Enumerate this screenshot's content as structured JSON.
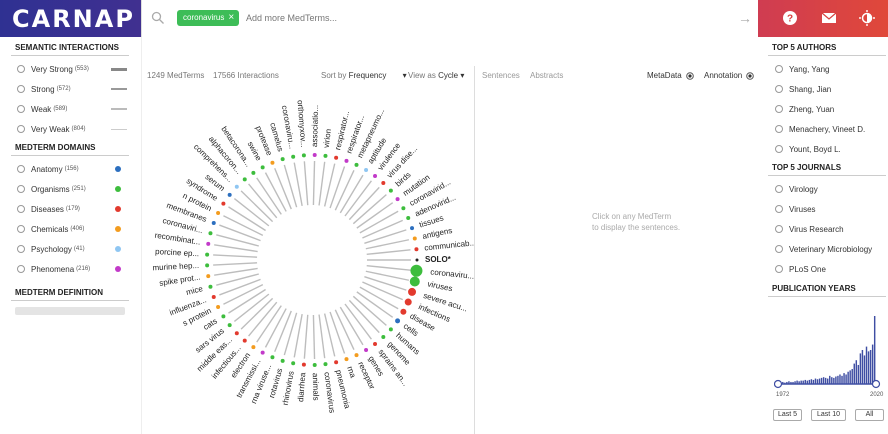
{
  "header": {
    "logo": "CARNAP",
    "chip_label": "coronavirus",
    "search_placeholder": "Add more MedTerms...",
    "gradient": [
      "#2f3192",
      "#e0483a"
    ]
  },
  "semantic": {
    "title": "SEMANTIC INTERACTIONS",
    "items": [
      {
        "label": "Very Strong",
        "count": "(553)"
      },
      {
        "label": "Strong",
        "count": "(572)"
      },
      {
        "label": "Weak",
        "count": "(589)"
      },
      {
        "label": "Very Weak",
        "count": "(804)"
      }
    ]
  },
  "domains": {
    "title": "MEDTERM DOMAINS",
    "items": [
      {
        "label": "Anatomy",
        "count": "(156)",
        "color": "#2c6fbf"
      },
      {
        "label": "Organisms",
        "count": "(251)",
        "color": "#3dbd3d"
      },
      {
        "label": "Diseases",
        "count": "(179)",
        "color": "#e23a2e"
      },
      {
        "label": "Chemicals",
        "count": "(406)",
        "color": "#f39c1f"
      },
      {
        "label": "Psychology",
        "count": "(41)",
        "color": "#8fc6f2"
      },
      {
        "label": "Phenomena",
        "count": "(216)",
        "color": "#c23ac9"
      }
    ]
  },
  "definition": {
    "title": "MEDTERM DEFINITION"
  },
  "graph": {
    "medterms": "1249",
    "medterms_label": "MedTerms",
    "interactions": "17566",
    "interactions_label": "Interactions",
    "sort_by_label": "Sort by",
    "sort_by_value": "Frequency",
    "view_as_label": "View as",
    "view_as_value": "Cycle",
    "center_term": "SOLO*",
    "nodes": [
      {
        "label": "coronaviru...",
        "color": "#3dbd3d",
        "size": 6
      },
      {
        "label": "viruses",
        "color": "#3dbd3d",
        "size": 5
      },
      {
        "label": "severe acu...",
        "color": "#e23a2e",
        "size": 4
      },
      {
        "label": "infections",
        "color": "#e23a2e",
        "size": 3.5
      },
      {
        "label": "disease",
        "color": "#e23a2e",
        "size": 3
      },
      {
        "label": "cells",
        "color": "#2c6fbf",
        "size": 2.5
      },
      {
        "label": "humans",
        "color": "#3dbd3d",
        "size": 2
      },
      {
        "label": "genome",
        "color": "#3dbd3d",
        "size": 2
      },
      {
        "label": "sprains an...",
        "color": "#e23a2e",
        "size": 2
      },
      {
        "label": "genes",
        "color": "#c23ac9",
        "size": 2
      },
      {
        "label": "receptor",
        "color": "#f39c1f",
        "size": 2
      },
      {
        "label": "rna",
        "color": "#f39c1f",
        "size": 2
      },
      {
        "label": "pneumonia",
        "color": "#e23a2e",
        "size": 2
      },
      {
        "label": "coronavirus",
        "color": "#3dbd3d",
        "size": 2
      },
      {
        "label": "animals",
        "color": "#3dbd3d",
        "size": 2
      },
      {
        "label": "diarrhea",
        "color": "#e23a2e",
        "size": 2
      },
      {
        "label": "rhinovirus",
        "color": "#3dbd3d",
        "size": 2
      },
      {
        "label": "rotavirus",
        "color": "#3dbd3d",
        "size": 2
      },
      {
        "label": "rna viruse...",
        "color": "#3dbd3d",
        "size": 2
      },
      {
        "label": "transmissi...",
        "color": "#c23ac9",
        "size": 2
      },
      {
        "label": "electron",
        "color": "#f39c1f",
        "size": 2
      },
      {
        "label": "infectious...",
        "color": "#e23a2e",
        "size": 2
      },
      {
        "label": "middle eas...",
        "color": "#e23a2e",
        "size": 2
      },
      {
        "label": "sars virus",
        "color": "#3dbd3d",
        "size": 2
      },
      {
        "label": "cats",
        "color": "#3dbd3d",
        "size": 2
      },
      {
        "label": "s protein",
        "color": "#f39c1f",
        "size": 2
      },
      {
        "label": "influenza...",
        "color": "#e23a2e",
        "size": 2
      },
      {
        "label": "mice",
        "color": "#3dbd3d",
        "size": 2
      },
      {
        "label": "spike prot...",
        "color": "#f39c1f",
        "size": 2
      },
      {
        "label": "murine hep...",
        "color": "#3dbd3d",
        "size": 2
      },
      {
        "label": "porcine ep...",
        "color": "#3dbd3d",
        "size": 2
      },
      {
        "label": "recombinat...",
        "color": "#c23ac9",
        "size": 2
      },
      {
        "label": "coronaviri...",
        "color": "#3dbd3d",
        "size": 2
      },
      {
        "label": "membranes",
        "color": "#2c6fbf",
        "size": 2
      },
      {
        "label": "n protein",
        "color": "#f39c1f",
        "size": 2
      },
      {
        "label": "syndrome",
        "color": "#e23a2e",
        "size": 2
      },
      {
        "label": "serum",
        "color": "#2c6fbf",
        "size": 2
      },
      {
        "label": "comprehens...",
        "color": "#8fc6f2",
        "size": 2
      },
      {
        "label": "alphacoron...",
        "color": "#3dbd3d",
        "size": 2
      },
      {
        "label": "betacorona...",
        "color": "#3dbd3d",
        "size": 2
      },
      {
        "label": "swine",
        "color": "#3dbd3d",
        "size": 2
      },
      {
        "label": "protease",
        "color": "#f39c1f",
        "size": 2
      },
      {
        "label": "camelus",
        "color": "#3dbd3d",
        "size": 2
      },
      {
        "label": "coronaviru...",
        "color": "#3dbd3d",
        "size": 2
      },
      {
        "label": "orthomyxov...",
        "color": "#3dbd3d",
        "size": 2
      },
      {
        "label": "associatio...",
        "color": "#c23ac9",
        "size": 2
      },
      {
        "label": "virion",
        "color": "#3dbd3d",
        "size": 2
      },
      {
        "label": "respirator...",
        "color": "#e23a2e",
        "size": 2
      },
      {
        "label": "respirator...",
        "color": "#c23ac9",
        "size": 2
      },
      {
        "label": "metapneumo...",
        "color": "#3dbd3d",
        "size": 2
      },
      {
        "label": "aptitude",
        "color": "#8fc6f2",
        "size": 2
      },
      {
        "label": "virulence",
        "color": "#c23ac9",
        "size": 2
      },
      {
        "label": "virus dise...",
        "color": "#e23a2e",
        "size": 2
      },
      {
        "label": "birds",
        "color": "#3dbd3d",
        "size": 2
      },
      {
        "label": "mutation",
        "color": "#c23ac9",
        "size": 2
      },
      {
        "label": "coronavirid...",
        "color": "#3dbd3d",
        "size": 2
      },
      {
        "label": "adenovirid...",
        "color": "#3dbd3d",
        "size": 2
      },
      {
        "label": "tissues",
        "color": "#2c6fbf",
        "size": 2
      },
      {
        "label": "antigens",
        "color": "#f39c1f",
        "size": 2
      },
      {
        "label": "communicab...",
        "color": "#e23a2e",
        "size": 2
      }
    ]
  },
  "sentences": {
    "tab_sentences": "Sentences",
    "tab_abstracts": "Abstracts",
    "metadata_label": "MetaData",
    "annotation_label": "Annotation",
    "hint_line1": "Click on any MedTerm",
    "hint_line2": "to display the sentences."
  },
  "authors": {
    "title": "TOP 5 AUTHORS",
    "items": [
      "Yang, Yang",
      "Shang, Jian",
      "Zheng, Yuan",
      "Menachery, Vineet D.",
      "Yount, Boyd L."
    ]
  },
  "journals": {
    "title": "TOP 5 JOURNALS",
    "items": [
      "Virology",
      "Viruses",
      "Virus Research",
      "Veterinary Microbiology",
      "PLoS One"
    ]
  },
  "years": {
    "title": "PUBLICATION YEARS",
    "start": "1972",
    "end": "2020",
    "btn_last5": "Last 5",
    "btn_last10": "Last 10",
    "btn_all": "All",
    "histogram": [
      0.03,
      0.02,
      0.03,
      0.02,
      0.03,
      0.04,
      0.03,
      0.03,
      0.04,
      0.05,
      0.04,
      0.05,
      0.05,
      0.06,
      0.05,
      0.06,
      0.07,
      0.06,
      0.08,
      0.07,
      0.08,
      0.09,
      0.1,
      0.09,
      0.08,
      0.12,
      0.1,
      0.09,
      0.11,
      0.12,
      0.14,
      0.12,
      0.16,
      0.14,
      0.18,
      0.2,
      0.22,
      0.3,
      0.35,
      0.28,
      0.45,
      0.5,
      0.42,
      0.55,
      0.48,
      0.5,
      0.58,
      1.0
    ]
  }
}
